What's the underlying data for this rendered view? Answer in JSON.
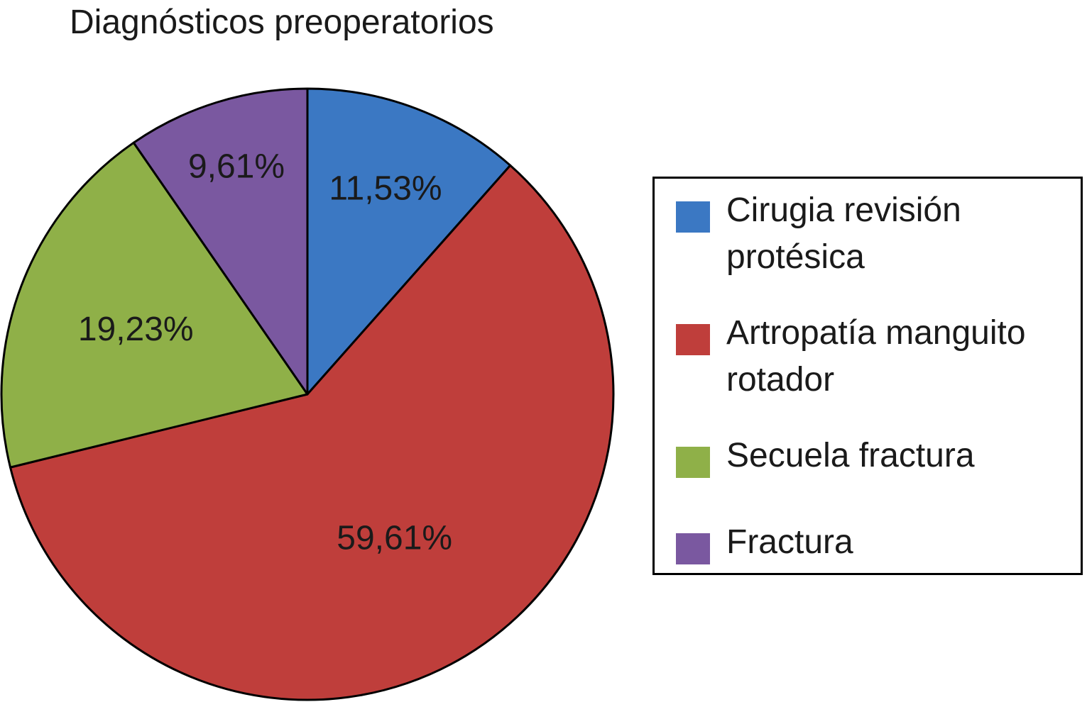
{
  "chart_data": {
    "type": "pie",
    "title": "Diagnósticos preoperatorios",
    "categories": [
      "Cirugia revisión protésica",
      "Artropatía manguito rotador",
      "Secuela fractura",
      "Fractura"
    ],
    "values": [
      11.53,
      59.61,
      19.23,
      9.61
    ],
    "value_labels": [
      "11,53%",
      "59,61%",
      "19,23%",
      "9,61%"
    ],
    "colors": [
      "#3b78c3",
      "#bf3e3b",
      "#8fb048",
      "#7a58a0"
    ],
    "start_angle": "12 o'clock",
    "direction": "clockwise",
    "legend_position": "right",
    "legend": [
      {
        "line1": "Cirugia revisión",
        "line2": "protésica",
        "color": "#3b78c3"
      },
      {
        "line1": "Artropatía manguito",
        "line2": "rotador",
        "color": "#bf3e3b"
      },
      {
        "line1": "Secuela fractura",
        "line2": "",
        "color": "#8fb048"
      },
      {
        "line1": "Fractura",
        "line2": "",
        "color": "#7a58a0"
      }
    ]
  }
}
